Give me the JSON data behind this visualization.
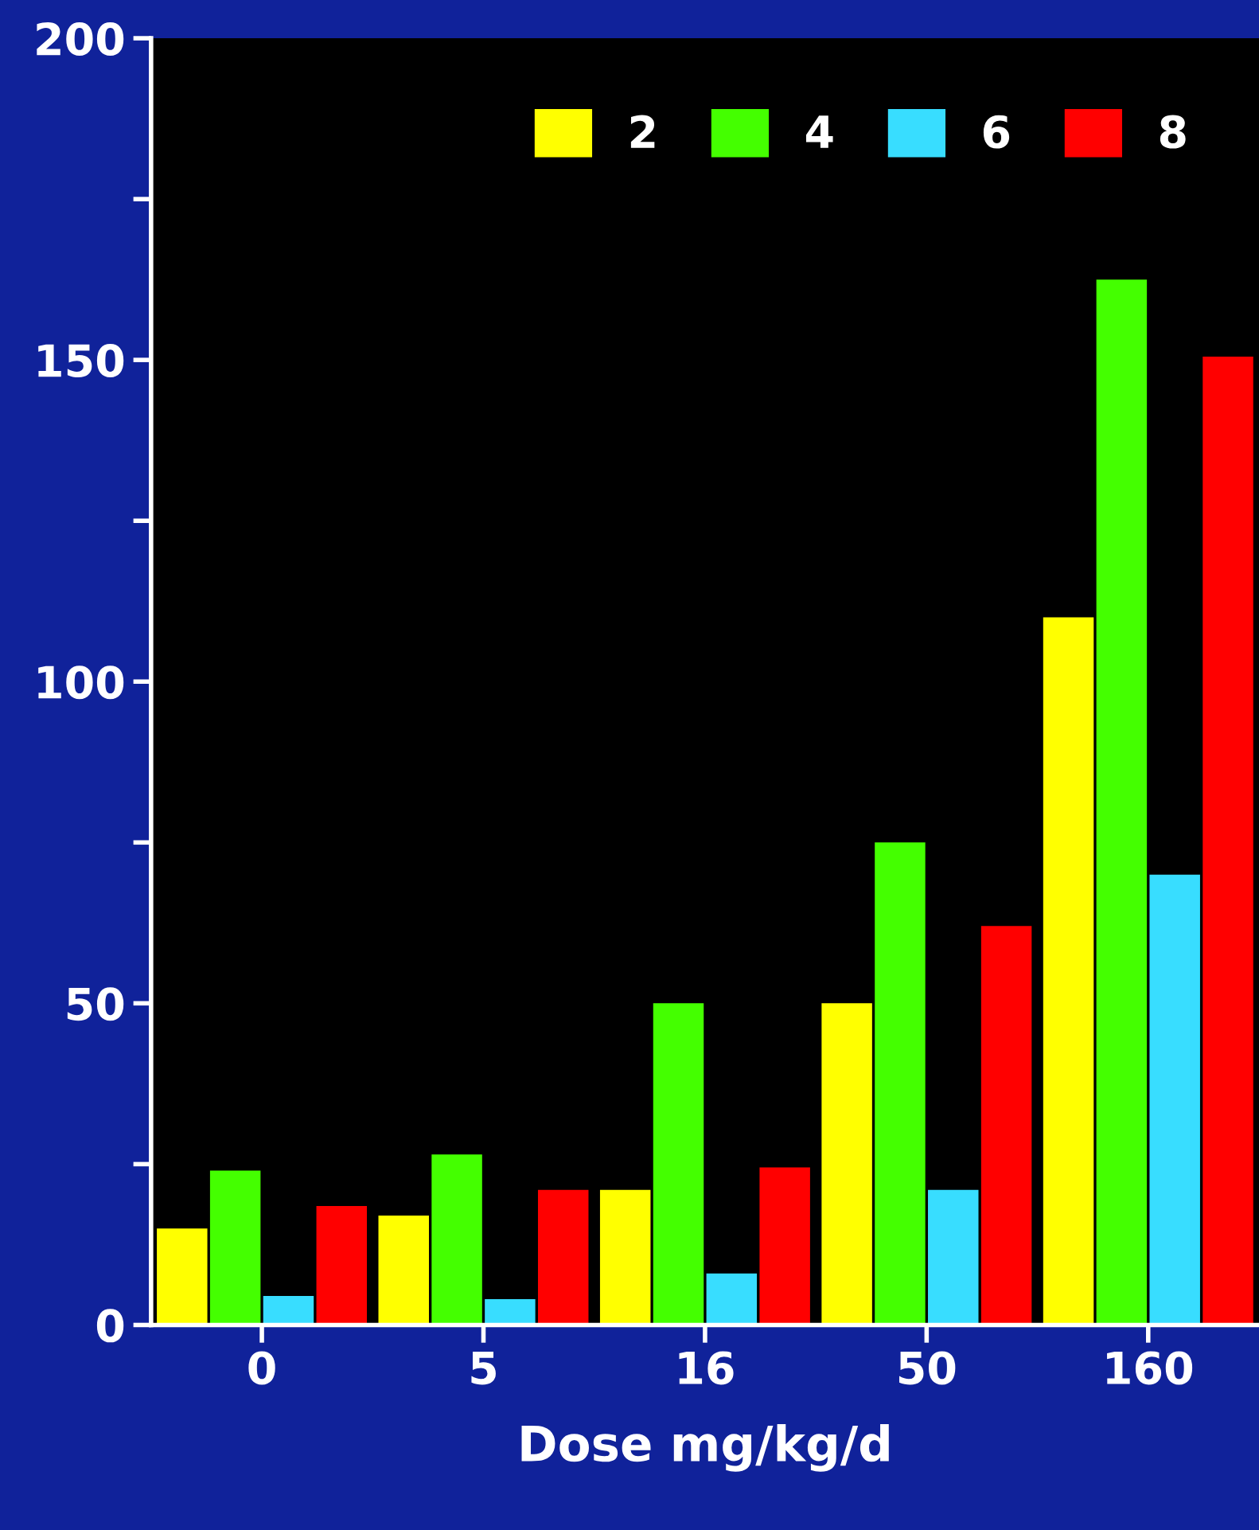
{
  "chart_data": {
    "type": "bar",
    "xlabel": "Dose mg/kg/d",
    "categories": [
      "0",
      "5",
      "16",
      "50",
      "160"
    ],
    "series": [
      {
        "name": "2",
        "color": "#ffff00",
        "values": [
          15,
          17,
          21,
          50,
          110
        ]
      },
      {
        "name": "4",
        "color": "#44ff00",
        "values": [
          24,
          26.5,
          50,
          75,
          162.5
        ]
      },
      {
        "name": "6",
        "color": "#38ddff",
        "values": [
          4.5,
          4,
          8,
          21,
          70
        ]
      },
      {
        "name": "8",
        "color": "#ff0000",
        "values": [
          18.5,
          21,
          24.5,
          62,
          150.5
        ]
      }
    ],
    "ylim": [
      0,
      200
    ],
    "yticks": [
      0,
      {
        "value": 25,
        "label": null
      },
      50,
      {
        "value": 75,
        "label": null
      },
      100,
      {
        "value": 125,
        "label": null
      },
      150,
      {
        "value": 175,
        "label": null
      },
      200
    ],
    "legend": "top right",
    "grid": false
  }
}
